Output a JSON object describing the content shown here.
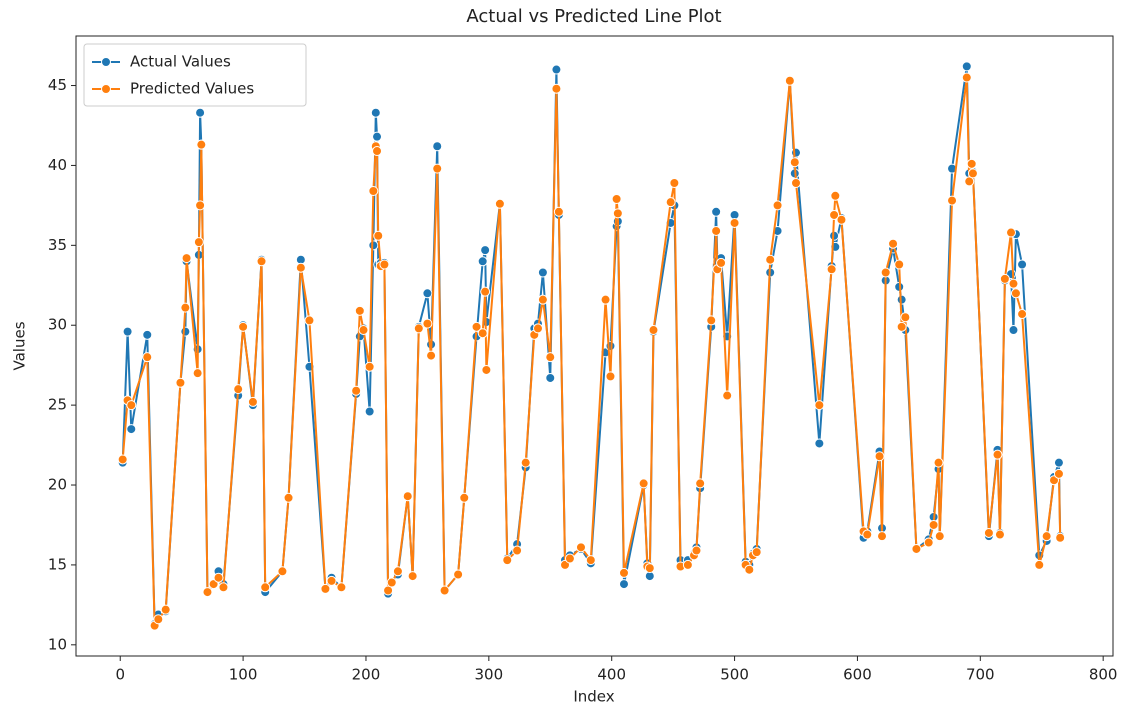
{
  "chart_data": {
    "type": "line",
    "title": "Actual vs Predicted Line Plot",
    "x_label": "Index",
    "y_label": "Values",
    "x": [
      2,
      6,
      9,
      22,
      28,
      31,
      37,
      49,
      53,
      54,
      63,
      64,
      65,
      66,
      71,
      76,
      80,
      84,
      96,
      100,
      108,
      115,
      118,
      132,
      137,
      147,
      154,
      167,
      172,
      180,
      192,
      195,
      198,
      203,
      206,
      208,
      209,
      210,
      212,
      215,
      218,
      221,
      226,
      234,
      238,
      243,
      250,
      253,
      258,
      264,
      275,
      280,
      290,
      295,
      297,
      298,
      309,
      315,
      323,
      330,
      337,
      340,
      344,
      350,
      355,
      357,
      362,
      366,
      375,
      383,
      395,
      399,
      404,
      405,
      410,
      426,
      429,
      431,
      434,
      448,
      451,
      456,
      462,
      467,
      469,
      472,
      481,
      485,
      486,
      489,
      494,
      500,
      509,
      512,
      515,
      518,
      529,
      535,
      545,
      549,
      550,
      569,
      579,
      581,
      582,
      587,
      605,
      608,
      618,
      620,
      623,
      629,
      634,
      636,
      639,
      648,
      658,
      662,
      666,
      667,
      677,
      689,
      691,
      693,
      694,
      707,
      714,
      716,
      720,
      725,
      727,
      729,
      734,
      748,
      754,
      760,
      764,
      765
    ],
    "series": [
      {
        "name": "Actual Values",
        "color": "#1f77b4",
        "values": [
          21.4,
          29.6,
          23.5,
          29.4,
          11.3,
          11.9,
          12.1,
          26.4,
          29.6,
          34.0,
          28.5,
          34.4,
          43.3,
          41.3,
          13.3,
          13.8,
          14.6,
          13.8,
          25.6,
          30.0,
          25.0,
          34.1,
          13.3,
          14.6,
          19.2,
          34.1,
          27.4,
          13.5,
          14.2,
          13.6,
          25.7,
          29.3,
          29.8,
          24.6,
          35.0,
          43.3,
          41.8,
          33.8,
          33.9,
          33.9,
          13.2,
          13.9,
          14.4,
          19.3,
          14.3,
          29.9,
          32.0,
          28.8,
          41.2,
          13.4,
          14.4,
          19.2,
          29.3,
          34.0,
          34.7,
          30.2,
          37.6,
          15.4,
          16.3,
          21.1,
          29.8,
          30.1,
          33.3,
          26.7,
          46.0,
          36.9,
          15.3,
          15.6,
          16.0,
          15.1,
          28.3,
          28.7,
          36.2,
          36.5,
          13.8,
          20.0,
          15.1,
          14.3,
          29.6,
          36.4,
          37.5,
          15.3,
          15.3,
          15.7,
          16.1,
          19.8,
          29.9,
          37.1,
          34.0,
          34.2,
          29.3,
          36.9,
          15.2,
          15.0,
          15.7,
          16.0,
          33.3,
          35.9,
          45.3,
          39.5,
          40.8,
          22.6,
          33.7,
          35.6,
          34.9,
          36.7,
          16.7,
          17.1,
          22.1,
          17.3,
          32.8,
          34.8,
          32.4,
          31.6,
          29.7,
          16.0,
          16.6,
          18.0,
          21.0,
          16.8,
          39.8,
          46.2,
          39.5,
          40.0,
          39.6,
          16.8,
          22.2,
          17.0,
          32.8,
          33.2,
          29.7,
          35.7,
          33.8,
          15.6,
          16.5,
          20.5,
          21.4,
          16.8
        ]
      },
      {
        "name": "Predicted Values",
        "color": "#ff7f0e",
        "values": [
          21.6,
          25.3,
          25.0,
          28.0,
          11.2,
          11.6,
          12.2,
          26.4,
          31.1,
          34.2,
          27.0,
          35.2,
          37.5,
          41.3,
          13.3,
          13.8,
          14.2,
          13.6,
          26.0,
          29.9,
          25.2,
          34.0,
          13.6,
          14.6,
          19.2,
          33.6,
          30.3,
          13.5,
          14.0,
          13.6,
          25.9,
          30.9,
          29.7,
          27.4,
          38.4,
          41.2,
          40.9,
          35.6,
          33.7,
          33.8,
          13.4,
          13.9,
          14.6,
          19.3,
          14.3,
          29.8,
          30.1,
          28.1,
          39.8,
          13.4,
          14.4,
          19.2,
          29.9,
          29.5,
          32.1,
          27.2,
          37.6,
          15.3,
          15.9,
          21.4,
          29.4,
          29.8,
          31.6,
          28.0,
          44.8,
          37.1,
          15.0,
          15.4,
          16.1,
          15.3,
          31.6,
          26.8,
          37.9,
          37.0,
          14.5,
          20.1,
          14.9,
          14.8,
          29.7,
          37.7,
          38.9,
          14.9,
          15.0,
          15.6,
          15.9,
          20.1,
          30.3,
          35.9,
          33.5,
          33.9,
          25.6,
          36.4,
          15.0,
          14.7,
          15.6,
          15.8,
          34.1,
          37.5,
          45.3,
          40.2,
          38.9,
          25.0,
          33.5,
          36.9,
          38.1,
          36.6,
          17.1,
          16.9,
          21.8,
          16.8,
          33.3,
          35.1,
          33.8,
          29.9,
          30.5,
          16.0,
          16.4,
          17.5,
          21.4,
          16.8,
          37.8,
          45.5,
          39.0,
          40.1,
          39.5,
          17.0,
          21.9,
          16.9,
          32.9,
          35.8,
          32.6,
          32.0,
          30.7,
          15.0,
          16.8,
          20.3,
          20.7,
          16.7
        ]
      }
    ],
    "xlim": [
      -36,
      808
    ],
    "ylim": [
      9.3,
      48.1
    ],
    "xticks": [
      0,
      100,
      200,
      300,
      400,
      500,
      600,
      700,
      800
    ],
    "yticks": [
      10,
      15,
      20,
      25,
      30,
      35,
      40,
      45
    ],
    "legend": "upper-left"
  }
}
